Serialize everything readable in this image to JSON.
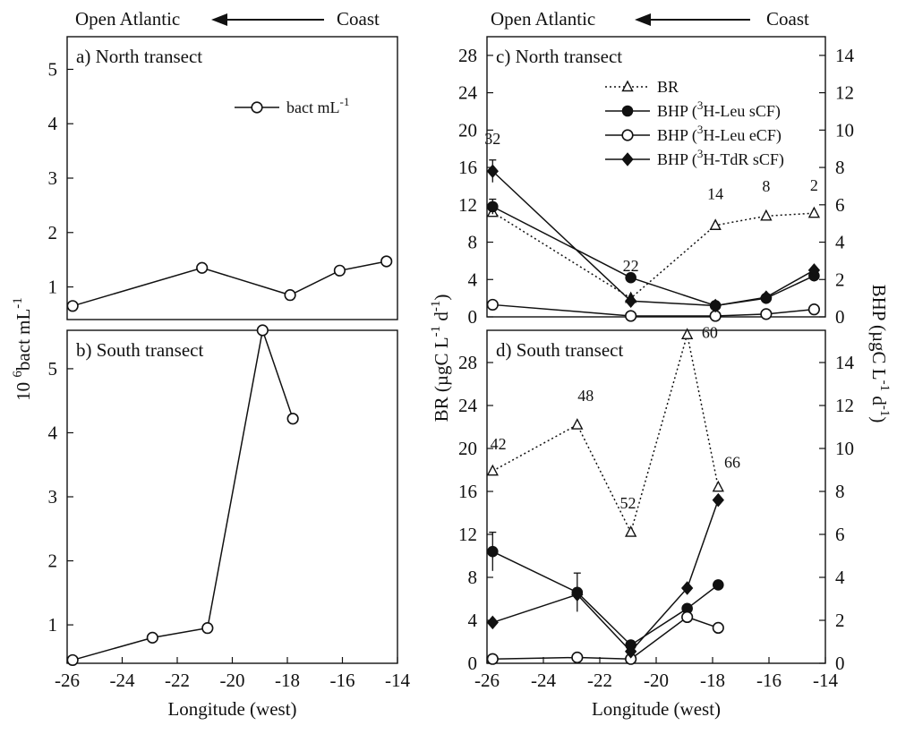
{
  "header": {
    "left": {
      "offshore": "Open Atlantic",
      "coast": "Coast"
    },
    "right": {
      "offshore": "Open Atlantic",
      "coast": "Coast"
    }
  },
  "chart_data": [
    {
      "id": "a",
      "type": "line",
      "title": "a) North transect",
      "ylabel": "10 6 bact mL-1",
      "ylim": [
        0.4,
        5.6
      ],
      "yticks": [
        1,
        2,
        3,
        4,
        5
      ],
      "xlim": [
        -26,
        -14
      ],
      "legend": [
        {
          "marker": "open-circle",
          "line": "solid",
          "text": "bact mL",
          "sup": "-1"
        }
      ],
      "series": [
        {
          "name": "bact mL-1",
          "marker": "open-circle",
          "line": "solid",
          "x": [
            -25.8,
            -21.1,
            -17.9,
            -16.1,
            -14.4
          ],
          "y": [
            0.65,
            1.35,
            0.85,
            1.3,
            1.47
          ]
        }
      ]
    },
    {
      "id": "b",
      "type": "line",
      "title": "b) South transect",
      "xlabel": "Longitude (west)",
      "ylim": [
        0.4,
        5.6
      ],
      "yticks": [
        1,
        2,
        3,
        4,
        5
      ],
      "xlim": [
        -26,
        -14
      ],
      "xticks": [
        -26,
        -24,
        -22,
        -20,
        -18,
        -16,
        -14
      ],
      "series": [
        {
          "name": "bact mL-1",
          "marker": "open-circle",
          "line": "solid",
          "x": [
            -25.8,
            -22.9,
            -20.9,
            -18.9,
            -17.8
          ],
          "y": [
            0.45,
            0.8,
            0.95,
            5.6,
            4.22
          ]
        }
      ]
    },
    {
      "id": "c",
      "type": "line",
      "title": "c) North transect",
      "ylim": [
        0,
        30
      ],
      "yticks": [
        0,
        4,
        8,
        12,
        16,
        20,
        24,
        28
      ],
      "y2lim": [
        0,
        15
      ],
      "y2ticks": [
        0,
        2,
        4,
        6,
        8,
        10,
        12,
        14
      ],
      "xlim": [
        -26,
        -14
      ],
      "legend": [
        {
          "marker": "open-triangle",
          "line": "dotted",
          "text": "BR"
        },
        {
          "marker": "filled-circle",
          "line": "solid",
          "pre": "BHP (",
          "sup": "3",
          "text": "H-Leu sCF)"
        },
        {
          "marker": "open-circle",
          "line": "solid",
          "pre": "BHP (",
          "sup": "3",
          "text": "H-Leu eCF)"
        },
        {
          "marker": "filled-diamond",
          "line": "solid",
          "pre": "BHP (",
          "sup": "3",
          "text": "H-TdR sCF)"
        }
      ],
      "series": [
        {
          "name": "BR",
          "axis": "left",
          "marker": "open-triangle",
          "line": "dotted",
          "x": [
            -25.8,
            -20.9,
            -17.9,
            -16.1,
            -14.4
          ],
          "y": [
            11.2,
            2.0,
            9.8,
            10.8,
            11.1
          ]
        },
        {
          "name": "BHP (3H-Leu sCF)",
          "axis": "right",
          "marker": "filled-circle",
          "line": "solid",
          "x": [
            -25.8,
            -20.9,
            -17.9,
            -16.1,
            -14.4
          ],
          "y": [
            5.9,
            2.1,
            0.6,
            1.0,
            2.2
          ],
          "err": [
            0.4,
            0,
            0,
            0,
            0.3
          ]
        },
        {
          "name": "BHP (3H-Leu eCF)",
          "axis": "right",
          "marker": "open-circle",
          "line": "solid",
          "x": [
            -25.8,
            -20.9,
            -17.9,
            -16.1,
            -14.4
          ],
          "y": [
            0.65,
            0.05,
            0.05,
            0.15,
            0.4
          ]
        },
        {
          "name": "BHP (3H-TdR sCF)",
          "axis": "right",
          "marker": "filled-diamond",
          "line": "solid",
          "x": [
            -25.8,
            -20.9,
            -17.9,
            -16.1,
            -14.4
          ],
          "y": [
            7.8,
            0.85,
            0.6,
            1.05,
            2.5
          ],
          "err": [
            0.6,
            0,
            0,
            0,
            0
          ]
        }
      ],
      "annotations": [
        {
          "text": "32",
          "x": -25.8,
          "y": 18.5
        },
        {
          "text": "22",
          "x": -20.9,
          "y": 4.9
        },
        {
          "text": "14",
          "x": -17.9,
          "y": 12.6
        },
        {
          "text": "8",
          "x": -16.1,
          "y": 13.4
        },
        {
          "text": "2",
          "x": -14.4,
          "y": 13.5
        }
      ]
    },
    {
      "id": "d",
      "type": "line",
      "title": "d) South transect",
      "xlabel": "Longitude (west)",
      "ylabel": "BR (µgC L-1 d-1)",
      "y2label": "BHP (µgC L-1 d-1)",
      "ylim": [
        0,
        31
      ],
      "yticks": [
        0,
        4,
        8,
        12,
        16,
        20,
        24,
        28
      ],
      "y2lim": [
        0,
        15.5
      ],
      "y2ticks": [
        0,
        2,
        4,
        6,
        8,
        10,
        12,
        14
      ],
      "xlim": [
        -26,
        -14
      ],
      "xticks": [
        -26,
        -24,
        -22,
        -20,
        -18,
        -16,
        -14
      ],
      "series": [
        {
          "name": "BR",
          "axis": "left",
          "marker": "open-triangle",
          "line": "dotted",
          "x": [
            -25.8,
            -22.8,
            -20.9,
            -18.9,
            -17.8
          ],
          "y": [
            17.9,
            22.2,
            12.2,
            30.6,
            16.4
          ]
        },
        {
          "name": "BHP (3H-Leu sCF)",
          "axis": "right",
          "marker": "filled-circle",
          "line": "solid",
          "x": [
            -25.8,
            -22.8,
            -20.9,
            -18.9,
            -17.8
          ],
          "y": [
            5.2,
            3.3,
            0.85,
            2.55,
            3.65
          ],
          "err": [
            0.9,
            0.9,
            0,
            0,
            0
          ]
        },
        {
          "name": "BHP (3H-Leu eCF)",
          "axis": "right",
          "marker": "open-circle",
          "line": "solid",
          "x": [
            -25.8,
            -22.8,
            -20.9,
            -18.9,
            -17.8
          ],
          "y": [
            0.2,
            0.27,
            0.2,
            2.15,
            1.65
          ]
        },
        {
          "name": "BHP (3H-TdR sCF)",
          "axis": "right",
          "marker": "filled-diamond",
          "line": "solid",
          "x": [
            -25.8,
            -22.8,
            -20.9,
            -18.9,
            -17.8
          ],
          "y": [
            1.9,
            3.2,
            0.55,
            3.5,
            7.6
          ]
        }
      ],
      "annotations": [
        {
          "text": "42",
          "x": -25.6,
          "y": 19.9
        },
        {
          "text": "48",
          "x": -22.5,
          "y": 24.4
        },
        {
          "text": "52",
          "x": -21.0,
          "y": 14.4
        },
        {
          "text": "60",
          "x": -18.1,
          "y": 30.3
        },
        {
          "text": "66",
          "x": -17.3,
          "y": 18.2
        }
      ]
    }
  ]
}
